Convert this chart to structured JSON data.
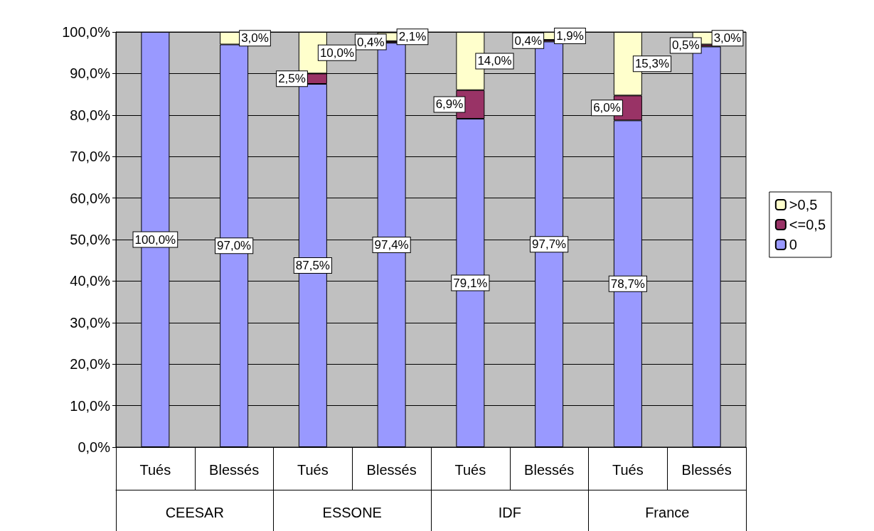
{
  "chart_data": {
    "type": "bar",
    "stacked": true,
    "categories": [
      "Tués",
      "Blessés",
      "Tués",
      "Blessés",
      "Tués",
      "Blessés",
      "Tués",
      "Blessés"
    ],
    "annotations": [
      "CEESAR",
      "ESSONE",
      "IDF",
      "France"
    ],
    "series": [
      {
        "name": "0",
        "color": "#9999ff",
        "values": [
          100.0,
          97.0,
          87.5,
          97.4,
          79.1,
          97.7,
          78.7,
          96.5
        ],
        "value_labels": [
          "100,0%",
          "97,0%",
          "87,5%",
          "97,4%",
          "79,1%",
          "97,7%",
          "78,7%",
          null
        ]
      },
      {
        "name": "<=0,5",
        "color": "#993366",
        "values": [
          null,
          null,
          2.5,
          0.4,
          6.9,
          0.4,
          6.0,
          0.5
        ],
        "value_labels": [
          null,
          null,
          "2,5%",
          "0,4%",
          "6,9%",
          "0,4%",
          "6,0%",
          "0,5%"
        ]
      },
      {
        "name": ">0,5",
        "color": "#ffffcc",
        "values": [
          null,
          3.0,
          10.0,
          2.1,
          14.0,
          1.9,
          15.3,
          3.0
        ],
        "value_labels": [
          null,
          "3,0%",
          "10,0%",
          "2,1%",
          "14,0%",
          "1,9%",
          "15,3%",
          "3,0%"
        ]
      }
    ],
    "ylim": [
      0,
      100
    ],
    "yticks": [
      {
        "value": 0,
        "label": "0,0%"
      },
      {
        "value": 10,
        "label": "10,0%"
      },
      {
        "value": 20,
        "label": "20,0%"
      },
      {
        "value": 30,
        "label": "30,0%"
      },
      {
        "value": 40,
        "label": "40,0%"
      },
      {
        "value": 50,
        "label": "50,0%"
      },
      {
        "value": 60,
        "label": "60,0%"
      },
      {
        "value": 70,
        "label": "70,0%"
      },
      {
        "value": 80,
        "label": "80,0%"
      },
      {
        "value": 90,
        "label": "90,0%"
      },
      {
        "value": 100,
        "label": "100,0%"
      }
    ],
    "grid": "y",
    "legend": "right"
  }
}
